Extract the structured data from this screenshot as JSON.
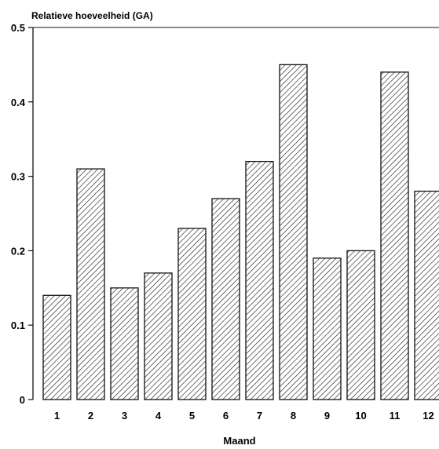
{
  "chart_data": {
    "type": "bar",
    "title": "Relatieve hoeveelheid (GA)",
    "xlabel": "Maand",
    "ylabel": "",
    "ylim": [
      0,
      0.5
    ],
    "yticks": [
      "0",
      "0.1",
      "0.2",
      "0.3",
      "0.4",
      "0.5"
    ],
    "categories": [
      "1",
      "2",
      "3",
      "4",
      "5",
      "6",
      "7",
      "8",
      "9",
      "10",
      "11",
      "12"
    ],
    "values": [
      0.14,
      0.31,
      0.15,
      0.17,
      0.23,
      0.27,
      0.32,
      0.45,
      0.19,
      0.2,
      0.44,
      0.28
    ],
    "grid": false,
    "bar_fill": "diagonal-hatch"
  },
  "colors": {
    "ink": "#111111",
    "background": "#ffffff"
  }
}
